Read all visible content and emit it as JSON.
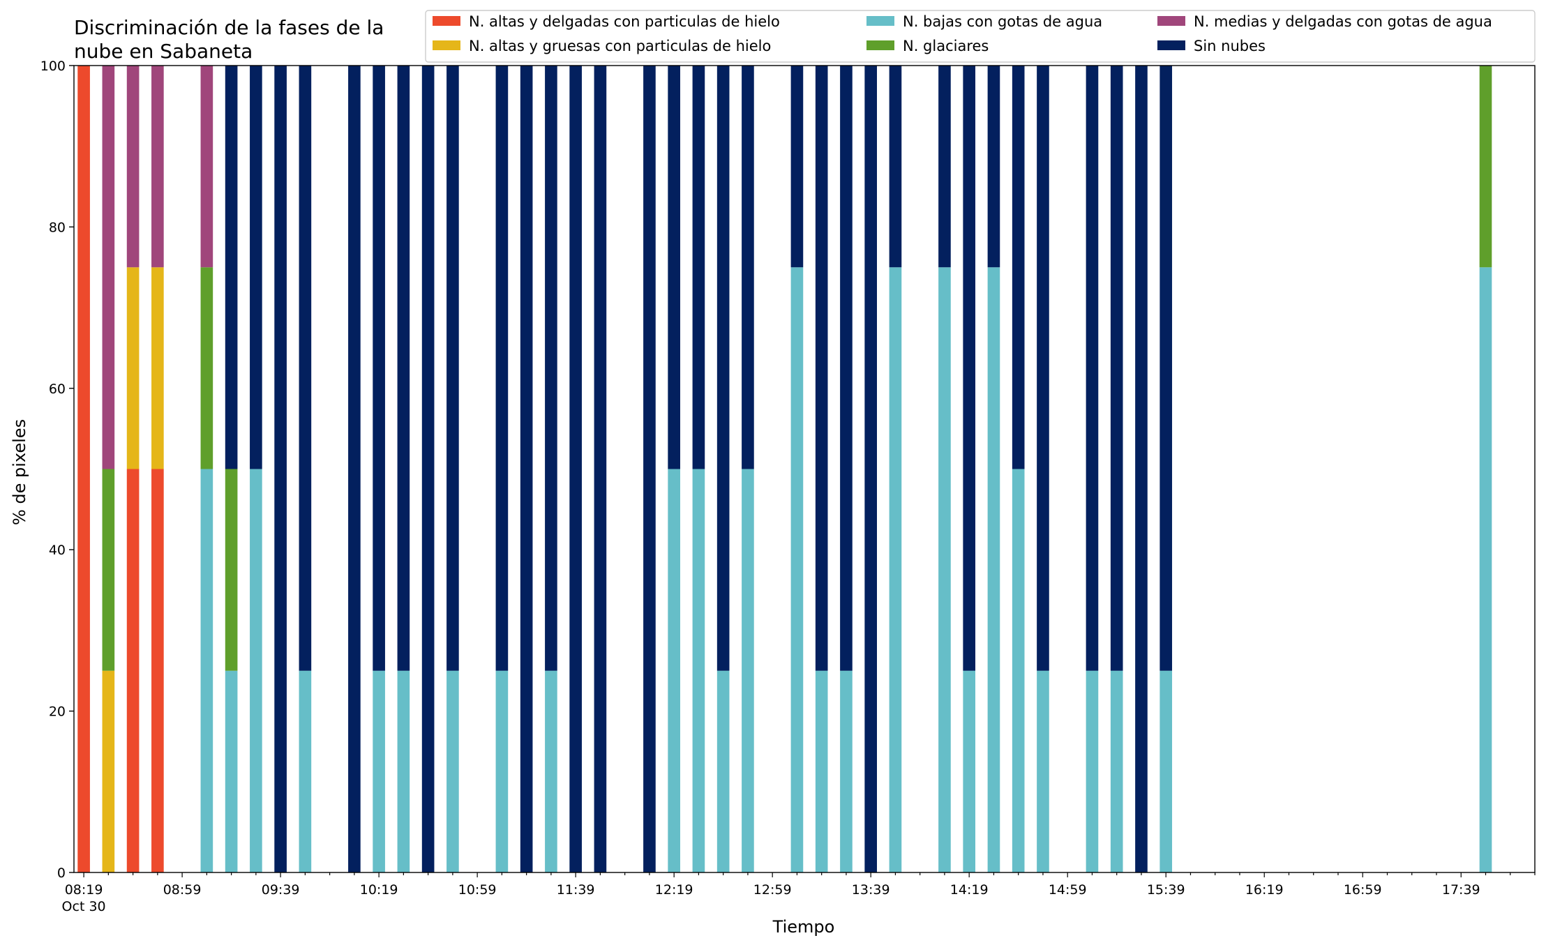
{
  "chart_data": {
    "type": "bar",
    "stacked": true,
    "title": "Discriminación de la fases de la nube en Sabaneta",
    "title_lines": [
      "Discriminación de la fases de la",
      "nube en Sabaneta"
    ],
    "xlabel": "Tiempo",
    "ylabel": "% de pixeles",
    "ylim": [
      0,
      100
    ],
    "yticks": [
      0,
      20,
      40,
      60,
      80,
      100
    ],
    "xlim": [
      495,
      1089
    ],
    "x_major_ticks": [
      {
        "minute": 499,
        "label": "08:19",
        "sublabel": "Oct 30"
      },
      {
        "minute": 539,
        "label": "08:59"
      },
      {
        "minute": 579,
        "label": "09:39"
      },
      {
        "minute": 619,
        "label": "10:19"
      },
      {
        "minute": 659,
        "label": "10:59"
      },
      {
        "minute": 699,
        "label": "11:39"
      },
      {
        "minute": 739,
        "label": "12:19"
      },
      {
        "minute": 779,
        "label": "12:59"
      },
      {
        "minute": 819,
        "label": "13:39"
      },
      {
        "minute": 859,
        "label": "14:19"
      },
      {
        "minute": 899,
        "label": "14:59"
      },
      {
        "minute": 939,
        "label": "15:39"
      },
      {
        "minute": 979,
        "label": "16:19"
      },
      {
        "minute": 1019,
        "label": "16:59"
      },
      {
        "minute": 1059,
        "label": "17:39"
      }
    ],
    "x_minor_step_minutes": 10,
    "bar_width_minutes": 5,
    "legend_position": "top-right",
    "series": [
      {
        "name": "N. altas y delgadas con particulas de hielo",
        "color": "#ed4a2c"
      },
      {
        "name": "N. altas y gruesas con particulas de hielo",
        "color": "#e5b619"
      },
      {
        "name": "N. bajas con gotas de agua",
        "color": "#66bec8"
      },
      {
        "name": "N. glaciares",
        "color": "#5f9f2b"
      },
      {
        "name": "N. medias y delgadas con gotas de agua",
        "color": "#a0467b"
      },
      {
        "name": "Sin nubes",
        "color": "#03205e"
      }
    ],
    "bars": [
      {
        "x": 499,
        "values": [
          100,
          0,
          0,
          0,
          0,
          0
        ]
      },
      {
        "x": 509,
        "values": [
          0,
          25,
          0,
          25,
          50,
          0
        ]
      },
      {
        "x": 519,
        "values": [
          50,
          25,
          0,
          0,
          25,
          0
        ]
      },
      {
        "x": 529,
        "values": [
          50,
          25,
          0,
          0,
          25,
          0
        ]
      },
      {
        "x": 549,
        "values": [
          0,
          0,
          50,
          25,
          25,
          0
        ]
      },
      {
        "x": 559,
        "values": [
          0,
          0,
          25,
          25,
          0,
          50
        ]
      },
      {
        "x": 569,
        "values": [
          0,
          0,
          50,
          0,
          0,
          50
        ]
      },
      {
        "x": 579,
        "values": [
          0,
          0,
          0,
          0,
          0,
          100
        ]
      },
      {
        "x": 589,
        "values": [
          0,
          0,
          25,
          0,
          0,
          75
        ]
      },
      {
        "x": 609,
        "values": [
          0,
          0,
          0,
          0,
          0,
          100
        ]
      },
      {
        "x": 619,
        "values": [
          0,
          0,
          25,
          0,
          0,
          75
        ]
      },
      {
        "x": 629,
        "values": [
          0,
          0,
          25,
          0,
          0,
          75
        ]
      },
      {
        "x": 639,
        "values": [
          0,
          0,
          0,
          0,
          0,
          100
        ]
      },
      {
        "x": 649,
        "values": [
          0,
          0,
          25,
          0,
          0,
          75
        ]
      },
      {
        "x": 669,
        "values": [
          0,
          0,
          25,
          0,
          0,
          75
        ]
      },
      {
        "x": 679,
        "values": [
          0,
          0,
          0,
          0,
          0,
          100
        ]
      },
      {
        "x": 689,
        "values": [
          0,
          0,
          25,
          0,
          0,
          75
        ]
      },
      {
        "x": 699,
        "values": [
          0,
          0,
          0,
          0,
          0,
          100
        ]
      },
      {
        "x": 709,
        "values": [
          0,
          0,
          0,
          0,
          0,
          100
        ]
      },
      {
        "x": 729,
        "values": [
          0,
          0,
          0,
          0,
          0,
          100
        ]
      },
      {
        "x": 739,
        "values": [
          0,
          0,
          50,
          0,
          0,
          50
        ]
      },
      {
        "x": 749,
        "values": [
          0,
          0,
          50,
          0,
          0,
          50
        ]
      },
      {
        "x": 759,
        "values": [
          0,
          0,
          25,
          0,
          0,
          75
        ]
      },
      {
        "x": 769,
        "values": [
          0,
          0,
          50,
          0,
          0,
          50
        ]
      },
      {
        "x": 789,
        "values": [
          0,
          0,
          75,
          0,
          0,
          25
        ]
      },
      {
        "x": 799,
        "values": [
          0,
          0,
          25,
          0,
          0,
          75
        ]
      },
      {
        "x": 809,
        "values": [
          0,
          0,
          25,
          0,
          0,
          75
        ]
      },
      {
        "x": 819,
        "values": [
          0,
          0,
          0,
          0,
          0,
          100
        ]
      },
      {
        "x": 829,
        "values": [
          0,
          0,
          75,
          0,
          0,
          25
        ]
      },
      {
        "x": 849,
        "values": [
          0,
          0,
          75,
          0,
          0,
          25
        ]
      },
      {
        "x": 859,
        "values": [
          0,
          0,
          25,
          0,
          0,
          75
        ]
      },
      {
        "x": 869,
        "values": [
          0,
          0,
          75,
          0,
          0,
          25
        ]
      },
      {
        "x": 879,
        "values": [
          0,
          0,
          50,
          0,
          0,
          50
        ]
      },
      {
        "x": 889,
        "values": [
          0,
          0,
          25,
          0,
          0,
          75
        ]
      },
      {
        "x": 909,
        "values": [
          0,
          0,
          25,
          0,
          0,
          75
        ]
      },
      {
        "x": 919,
        "values": [
          0,
          0,
          25,
          0,
          0,
          75
        ]
      },
      {
        "x": 929,
        "values": [
          0,
          0,
          0,
          0,
          0,
          100
        ]
      },
      {
        "x": 939,
        "values": [
          0,
          0,
          25,
          0,
          0,
          75
        ]
      },
      {
        "x": 1069,
        "values": [
          0,
          0,
          75,
          25,
          0,
          0
        ]
      }
    ]
  }
}
